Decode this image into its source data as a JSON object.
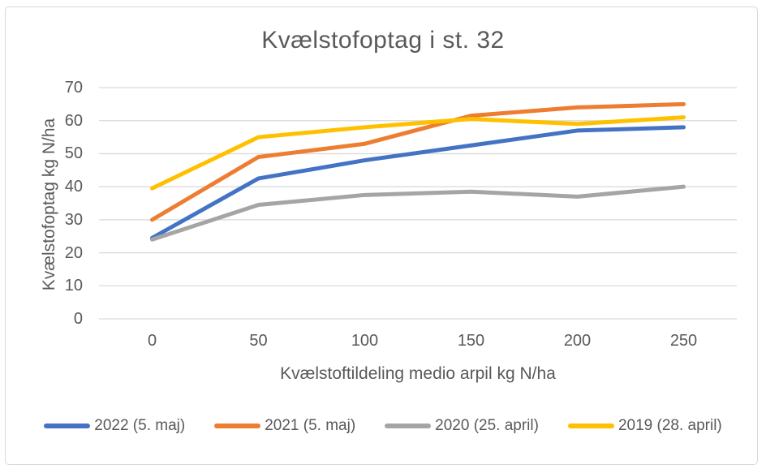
{
  "frame": {
    "border_color": "#D9D9D9",
    "background": "#FFFFFF"
  },
  "chart_data": {
    "type": "line",
    "title": "Kvælstofoptag i st. 32",
    "xlabel": "Kvælstoftildeling medio arpil kg N/ha",
    "ylabel": "Kvælstofoptag kg N/ha",
    "categories": [
      "0",
      "50",
      "100",
      "150",
      "200",
      "250"
    ],
    "yticks": [
      "0",
      "10",
      "20",
      "30",
      "40",
      "50",
      "60",
      "70"
    ],
    "ylim": [
      0,
      70
    ],
    "grid": true,
    "grid_color": "#D9D9D9",
    "text_color": "#595959",
    "legend_position": "bottom",
    "series": [
      {
        "name": "2022 (5. maj)",
        "color": "#4472C4",
        "values": [
          24.5,
          42.5,
          48,
          52.5,
          57,
          58
        ]
      },
      {
        "name": "2021 (5. maj)",
        "color": "#ED7D31",
        "values": [
          30,
          49,
          53,
          61.5,
          64,
          65
        ]
      },
      {
        "name": "2020 (25. april)",
        "color": "#A5A5A5",
        "values": [
          24,
          34.5,
          37.5,
          38.5,
          37,
          40
        ]
      },
      {
        "name": "2019 (28. april)",
        "color": "#FFC000",
        "values": [
          39.5,
          55,
          58,
          60.5,
          59,
          61
        ]
      }
    ]
  }
}
